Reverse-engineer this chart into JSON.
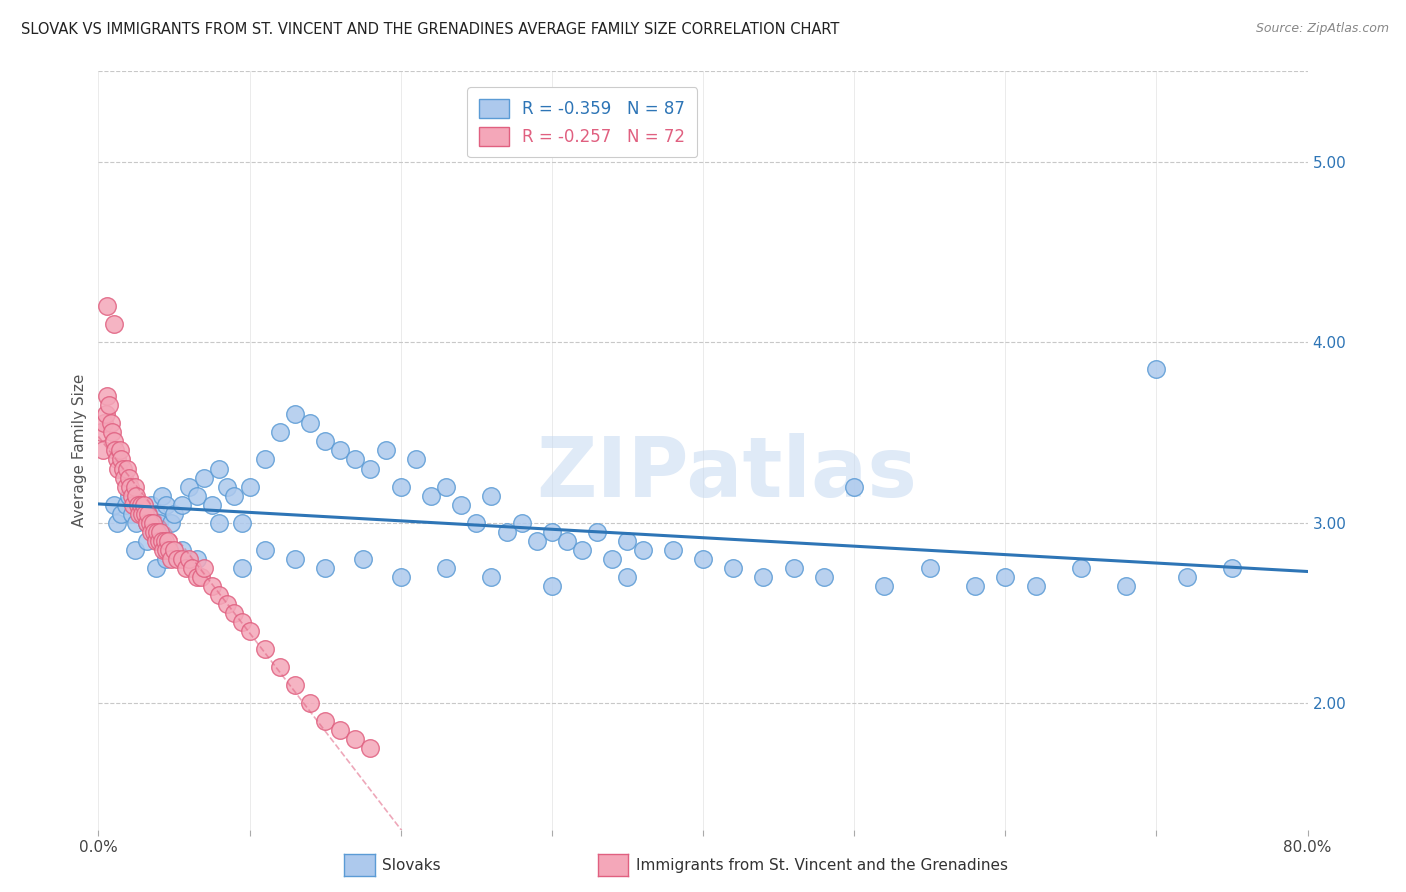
{
  "title": "SLOVAK VS IMMIGRANTS FROM ST. VINCENT AND THE GRENADINES AVERAGE FAMILY SIZE CORRELATION CHART",
  "source": "Source: ZipAtlas.com",
  "ylabel": "Average Family Size",
  "blue_label": "Slovaks",
  "pink_label": "Immigrants from St. Vincent and the Grenadines",
  "blue_R": -0.359,
  "blue_N": 87,
  "pink_R": -0.257,
  "pink_N": 72,
  "blue_color": "#adc9ed",
  "blue_edge_color": "#5b9bd5",
  "blue_line_color": "#2e75b6",
  "pink_color": "#f4a7b9",
  "pink_edge_color": "#e06080",
  "pink_line_color": "#c0506f",
  "background_color": "#ffffff",
  "grid_color": "#c8c8c8",
  "watermark_text": "ZIPatlas",
  "watermark_color": "#c5d9f1",
  "xlim": [
    0.0,
    0.8
  ],
  "ylim": [
    1.3,
    5.5
  ],
  "yticks_right": [
    2.0,
    3.0,
    4.0,
    5.0
  ],
  "xticks": [
    0.0,
    0.1,
    0.2,
    0.3,
    0.4,
    0.5,
    0.6,
    0.7,
    0.8
  ],
  "blue_x": [
    0.01,
    0.012,
    0.015,
    0.018,
    0.02,
    0.022,
    0.025,
    0.027,
    0.03,
    0.032,
    0.035,
    0.038,
    0.04,
    0.042,
    0.045,
    0.048,
    0.05,
    0.055,
    0.06,
    0.065,
    0.07,
    0.075,
    0.08,
    0.085,
    0.09,
    0.095,
    0.1,
    0.11,
    0.12,
    0.13,
    0.14,
    0.15,
    0.16,
    0.17,
    0.18,
    0.19,
    0.2,
    0.21,
    0.22,
    0.23,
    0.24,
    0.25,
    0.26,
    0.27,
    0.28,
    0.29,
    0.3,
    0.31,
    0.32,
    0.33,
    0.34,
    0.35,
    0.36,
    0.38,
    0.4,
    0.42,
    0.44,
    0.46,
    0.48,
    0.5,
    0.52,
    0.55,
    0.58,
    0.6,
    0.62,
    0.65,
    0.68,
    0.7,
    0.72,
    0.75,
    0.024,
    0.032,
    0.038,
    0.045,
    0.055,
    0.065,
    0.08,
    0.095,
    0.11,
    0.13,
    0.15,
    0.175,
    0.2,
    0.23,
    0.26,
    0.3,
    0.35
  ],
  "blue_y": [
    3.1,
    3.0,
    3.05,
    3.1,
    3.15,
    3.05,
    3.0,
    3.1,
    3.05,
    3.0,
    3.1,
    3.05,
    3.0,
    3.15,
    3.1,
    3.0,
    3.05,
    3.1,
    3.2,
    3.15,
    3.25,
    3.1,
    3.3,
    3.2,
    3.15,
    3.0,
    3.2,
    3.35,
    3.5,
    3.6,
    3.55,
    3.45,
    3.4,
    3.35,
    3.3,
    3.4,
    3.2,
    3.35,
    3.15,
    3.2,
    3.1,
    3.0,
    3.15,
    2.95,
    3.0,
    2.9,
    2.95,
    2.9,
    2.85,
    2.95,
    2.8,
    2.9,
    2.85,
    2.85,
    2.8,
    2.75,
    2.7,
    2.75,
    2.7,
    3.2,
    2.65,
    2.75,
    2.65,
    2.7,
    2.65,
    2.75,
    2.65,
    3.85,
    2.7,
    2.75,
    2.85,
    2.9,
    2.75,
    2.8,
    2.85,
    2.8,
    3.0,
    2.75,
    2.85,
    2.8,
    2.75,
    2.8,
    2.7,
    2.75,
    2.7,
    2.65,
    2.7
  ],
  "pink_x": [
    0.002,
    0.003,
    0.004,
    0.005,
    0.006,
    0.007,
    0.008,
    0.009,
    0.01,
    0.011,
    0.012,
    0.013,
    0.014,
    0.015,
    0.016,
    0.017,
    0.018,
    0.019,
    0.02,
    0.021,
    0.022,
    0.023,
    0.024,
    0.025,
    0.026,
    0.027,
    0.028,
    0.029,
    0.03,
    0.031,
    0.032,
    0.033,
    0.034,
    0.035,
    0.036,
    0.037,
    0.038,
    0.039,
    0.04,
    0.041,
    0.042,
    0.043,
    0.044,
    0.045,
    0.046,
    0.047,
    0.048,
    0.05,
    0.052,
    0.055,
    0.058,
    0.06,
    0.062,
    0.065,
    0.068,
    0.07,
    0.075,
    0.08,
    0.085,
    0.09,
    0.095,
    0.1,
    0.11,
    0.12,
    0.13,
    0.14,
    0.15,
    0.16,
    0.17,
    0.18,
    0.006,
    0.01
  ],
  "pink_y": [
    3.5,
    3.4,
    3.55,
    3.6,
    3.7,
    3.65,
    3.55,
    3.5,
    3.45,
    3.4,
    3.35,
    3.3,
    3.4,
    3.35,
    3.3,
    3.25,
    3.2,
    3.3,
    3.25,
    3.2,
    3.15,
    3.1,
    3.2,
    3.15,
    3.1,
    3.05,
    3.1,
    3.05,
    3.1,
    3.05,
    3.0,
    3.05,
    3.0,
    2.95,
    3.0,
    2.95,
    2.9,
    2.95,
    2.9,
    2.95,
    2.9,
    2.85,
    2.9,
    2.85,
    2.9,
    2.85,
    2.8,
    2.85,
    2.8,
    2.8,
    2.75,
    2.8,
    2.75,
    2.7,
    2.7,
    2.75,
    2.65,
    2.6,
    2.55,
    2.5,
    2.45,
    2.4,
    2.3,
    2.2,
    2.1,
    2.0,
    1.9,
    1.85,
    1.8,
    1.75,
    4.2,
    4.1
  ]
}
